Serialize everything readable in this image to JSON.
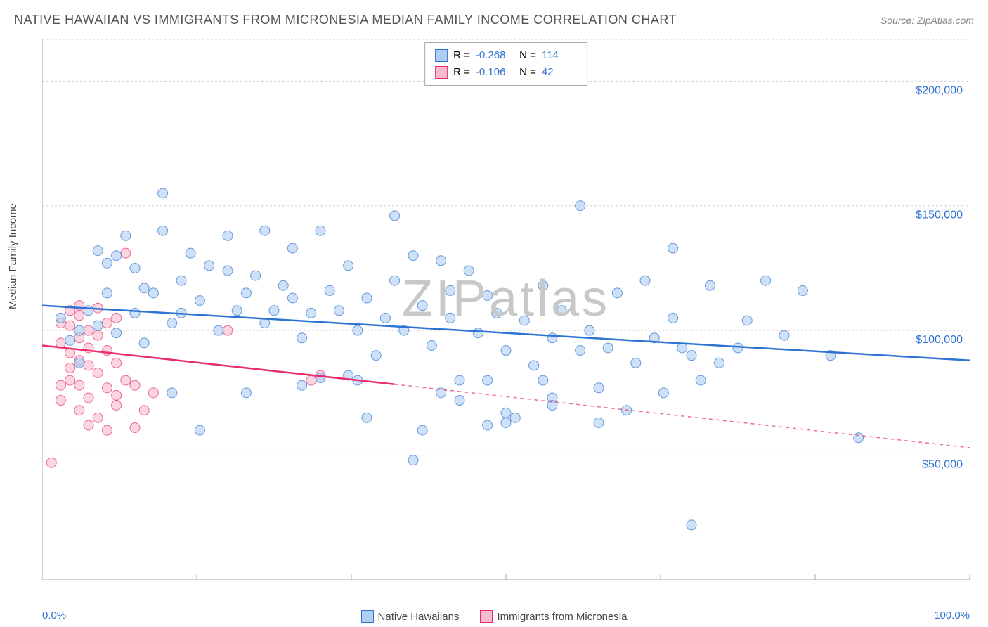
{
  "title": "NATIVE HAWAIIAN VS IMMIGRANTS FROM MICRONESIA MEDIAN FAMILY INCOME CORRELATION CHART",
  "source": "Source: ZipAtlas.com",
  "ylabel": "Median Family Income",
  "chart": {
    "type": "scatter",
    "xlim": [
      0,
      100
    ],
    "ylim": [
      0,
      217000
    ],
    "x_ticks": [
      0,
      16.67,
      33.33,
      50,
      66.67,
      83.33,
      100
    ],
    "x_tick_labels_shown": [
      "0.0%",
      "100.0%"
    ],
    "y_gridlines": [
      50000,
      100000,
      150000,
      200000
    ],
    "y_gridline_labels": [
      "$50,000",
      "$100,000",
      "$150,000",
      "$200,000"
    ],
    "grid_color": "#d0d0d0",
    "grid_dash": "3,3",
    "axis_color": "#aaaaaa",
    "background": "#ffffff",
    "tick_label_color": "#2e73d1",
    "watermark": "ZIPatlas",
    "series": [
      {
        "name": "Native Hawaiians",
        "color": "#2e73d1",
        "fill": "#aecdf0",
        "fill_opacity": 0.6,
        "marker_radius": 7,
        "R": "-0.268",
        "N": "114",
        "trend": {
          "x1": 0,
          "y1": 110000,
          "x2": 100,
          "y2": 88000,
          "solid_until_x": 100
        },
        "points": [
          [
            2,
            105000
          ],
          [
            3,
            96000
          ],
          [
            4,
            100000
          ],
          [
            4,
            87000
          ],
          [
            5,
            108000
          ],
          [
            6,
            132000
          ],
          [
            6,
            102000
          ],
          [
            7,
            127000
          ],
          [
            7,
            115000
          ],
          [
            8,
            99000
          ],
          [
            8,
            130000
          ],
          [
            9,
            138000
          ],
          [
            10,
            107000
          ],
          [
            10,
            125000
          ],
          [
            11,
            117000
          ],
          [
            11,
            95000
          ],
          [
            12,
            115000
          ],
          [
            13,
            140000
          ],
          [
            13,
            155000
          ],
          [
            14,
            103000
          ],
          [
            15,
            120000
          ],
          [
            15,
            107000
          ],
          [
            16,
            131000
          ],
          [
            17,
            112000
          ],
          [
            17,
            60000
          ],
          [
            18,
            126000
          ],
          [
            19,
            100000
          ],
          [
            20,
            124000
          ],
          [
            20,
            138000
          ],
          [
            21,
            108000
          ],
          [
            22,
            115000
          ],
          [
            23,
            122000
          ],
          [
            24,
            103000
          ],
          [
            24,
            140000
          ],
          [
            25,
            108000
          ],
          [
            26,
            118000
          ],
          [
            27,
            133000
          ],
          [
            27,
            113000
          ],
          [
            28,
            97000
          ],
          [
            29,
            107000
          ],
          [
            30,
            140000
          ],
          [
            30,
            81000
          ],
          [
            31,
            116000
          ],
          [
            32,
            108000
          ],
          [
            33,
            126000
          ],
          [
            33,
            82000
          ],
          [
            34,
            100000
          ],
          [
            35,
            113000
          ],
          [
            36,
            90000
          ],
          [
            37,
            105000
          ],
          [
            38,
            146000
          ],
          [
            38,
            120000
          ],
          [
            39,
            100000
          ],
          [
            40,
            48000
          ],
          [
            40,
            130000
          ],
          [
            41,
            110000
          ],
          [
            41,
            60000
          ],
          [
            42,
            94000
          ],
          [
            43,
            128000
          ],
          [
            44,
            116000
          ],
          [
            44,
            105000
          ],
          [
            45,
            80000
          ],
          [
            46,
            124000
          ],
          [
            47,
            99000
          ],
          [
            48,
            114000
          ],
          [
            49,
            107000
          ],
          [
            50,
            92000
          ],
          [
            50,
            67000
          ],
          [
            51,
            65000
          ],
          [
            52,
            104000
          ],
          [
            53,
            86000
          ],
          [
            54,
            118000
          ],
          [
            55,
            97000
          ],
          [
            55,
            73000
          ],
          [
            56,
            108000
          ],
          [
            58,
            150000
          ],
          [
            58,
            92000
          ],
          [
            59,
            100000
          ],
          [
            60,
            77000
          ],
          [
            61,
            93000
          ],
          [
            62,
            115000
          ],
          [
            63,
            68000
          ],
          [
            64,
            87000
          ],
          [
            65,
            120000
          ],
          [
            66,
            97000
          ],
          [
            67,
            75000
          ],
          [
            68,
            105000
          ],
          [
            68,
            133000
          ],
          [
            69,
            93000
          ],
          [
            70,
            90000
          ],
          [
            71,
            80000
          ],
          [
            72,
            118000
          ],
          [
            73,
            87000
          ],
          [
            75,
            93000
          ],
          [
            76,
            104000
          ],
          [
            78,
            120000
          ],
          [
            80,
            98000
          ],
          [
            82,
            116000
          ],
          [
            85,
            90000
          ],
          [
            88,
            57000
          ],
          [
            70,
            22000
          ],
          [
            48,
            62000
          ],
          [
            55,
            70000
          ],
          [
            35,
            65000
          ],
          [
            50,
            63000
          ],
          [
            45,
            72000
          ],
          [
            60,
            63000
          ],
          [
            43,
            75000
          ],
          [
            22,
            75000
          ],
          [
            14,
            75000
          ],
          [
            28,
            78000
          ],
          [
            34,
            80000
          ],
          [
            48,
            80000
          ],
          [
            54,
            80000
          ]
        ]
      },
      {
        "name": "Immigrants from Micronesia",
        "color": "#e92d6c",
        "fill": "#f6bbcd",
        "fill_opacity": 0.6,
        "marker_radius": 7,
        "R": "-0.106",
        "N": "42",
        "trend": {
          "x1": 0,
          "y1": 94000,
          "x2": 100,
          "y2": 53000,
          "solid_until_x": 38
        },
        "points": [
          [
            1,
            47000
          ],
          [
            2,
            95000
          ],
          [
            2,
            103000
          ],
          [
            2,
            72000
          ],
          [
            3,
            102000
          ],
          [
            3,
            85000
          ],
          [
            3,
            91000
          ],
          [
            4,
            88000
          ],
          [
            4,
            97000
          ],
          [
            4,
            106000
          ],
          [
            4,
            78000
          ],
          [
            5,
            93000
          ],
          [
            5,
            86000
          ],
          [
            5,
            62000
          ],
          [
            5,
            73000
          ],
          [
            6,
            98000
          ],
          [
            6,
            83000
          ],
          [
            6,
            65000
          ],
          [
            7,
            77000
          ],
          [
            7,
            92000
          ],
          [
            7,
            103000
          ],
          [
            7,
            60000
          ],
          [
            8,
            70000
          ],
          [
            8,
            105000
          ],
          [
            8,
            87000
          ],
          [
            8,
            74000
          ],
          [
            9,
            80000
          ],
          [
            9,
            131000
          ],
          [
            10,
            61000
          ],
          [
            10,
            78000
          ],
          [
            11,
            68000
          ],
          [
            12,
            75000
          ],
          [
            3,
            108000
          ],
          [
            4,
            110000
          ],
          [
            5,
            100000
          ],
          [
            6,
            109000
          ],
          [
            20,
            100000
          ],
          [
            29,
            80000
          ],
          [
            30,
            82000
          ],
          [
            4,
            68000
          ],
          [
            2,
            78000
          ],
          [
            3,
            80000
          ]
        ]
      }
    ],
    "bottom_legend": [
      {
        "label": "Native Hawaiians",
        "fill": "#aecdf0",
        "border": "#2e73d1"
      },
      {
        "label": "Immigrants from Micronesia",
        "fill": "#f6bbcd",
        "border": "#e92d6c"
      }
    ]
  }
}
